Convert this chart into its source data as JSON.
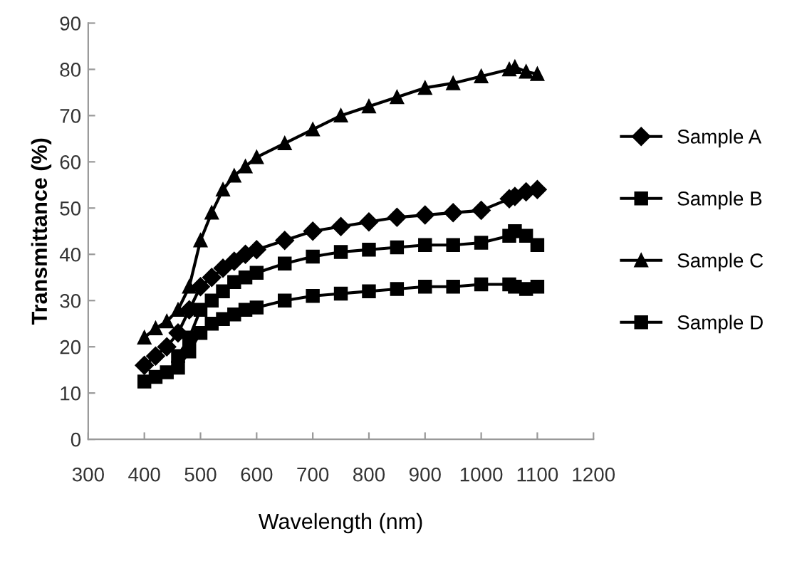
{
  "chart_data": {
    "type": "line",
    "xlabel": "Wavelength (nm)",
    "ylabel": "Transmittance (%)",
    "xlim": [
      300,
      1200
    ],
    "xticks": [
      300,
      400,
      500,
      600,
      700,
      800,
      900,
      1000,
      1100,
      1200
    ],
    "ylim": [
      0,
      90
    ],
    "yticks": [
      0,
      10,
      20,
      30,
      40,
      50,
      60,
      70,
      80,
      90
    ],
    "grid": false,
    "legend": "right",
    "x": [
      400,
      420,
      440,
      460,
      480,
      500,
      520,
      540,
      560,
      580,
      600,
      650,
      700,
      750,
      800,
      850,
      900,
      950,
      1000,
      1050,
      1060,
      1080,
      1100
    ],
    "series": [
      {
        "name": "Sample A",
        "color": "#000000",
        "marker": "diamond",
        "values": [
          16,
          18,
          20,
          23,
          28,
          33,
          35,
          37,
          38.5,
          40,
          41,
          43,
          45,
          46,
          47,
          48,
          48.5,
          49,
          49.5,
          52,
          52.5,
          53.5,
          54
        ]
      },
      {
        "name": "Sample B",
        "color": "#000000",
        "marker": "square",
        "values": [
          null,
          null,
          null,
          18,
          22,
          28,
          30,
          32,
          34,
          35,
          36,
          38,
          39.5,
          40.5,
          41,
          41.5,
          42,
          42,
          42.5,
          44,
          45,
          44,
          42
        ]
      },
      {
        "name": "Sample C",
        "color": "#000000",
        "marker": "triangle",
        "values": [
          22,
          24,
          25.5,
          28,
          33,
          43,
          49,
          54,
          57,
          59,
          61,
          64,
          67,
          70,
          72,
          74,
          76,
          77,
          78.5,
          80,
          80.5,
          79.5,
          79
        ]
      },
      {
        "name": "Sample D",
        "color": "#000000",
        "marker": "square",
        "values": [
          12.5,
          13.5,
          14.5,
          15.5,
          19,
          23,
          25,
          26,
          27,
          28,
          28.5,
          30,
          31,
          31.5,
          32,
          32.5,
          33,
          33,
          33.5,
          33.5,
          33,
          32.5,
          33
        ]
      }
    ]
  }
}
